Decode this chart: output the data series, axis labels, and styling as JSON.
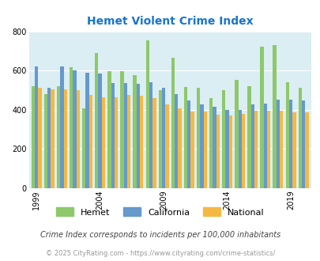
{
  "title": "Hemet Violent Crime Index",
  "title_color": "#1874CD",
  "years": [
    1999,
    2000,
    2001,
    2002,
    2003,
    2004,
    2005,
    2006,
    2007,
    2008,
    2009,
    2010,
    2011,
    2012,
    2013,
    2014,
    2015,
    2016,
    2017,
    2018,
    2019,
    2020
  ],
  "hemet": [
    520,
    480,
    520,
    615,
    405,
    690,
    595,
    595,
    575,
    755,
    500,
    665,
    515,
    510,
    460,
    500,
    550,
    520,
    720,
    730,
    540,
    510
  ],
  "california": [
    620,
    510,
    620,
    600,
    590,
    585,
    535,
    535,
    530,
    540,
    510,
    480,
    445,
    425,
    415,
    400,
    400,
    425,
    430,
    450,
    450,
    445
  ],
  "national": [
    510,
    505,
    505,
    500,
    475,
    465,
    465,
    475,
    470,
    460,
    425,
    405,
    390,
    390,
    375,
    370,
    380,
    395,
    395,
    395,
    385,
    385
  ],
  "hemet_color": "#8DC86A",
  "california_color": "#6699CC",
  "national_color": "#F5B942",
  "plot_bg": "#daeef3",
  "ylim": [
    0,
    800
  ],
  "yticks": [
    0,
    200,
    400,
    600,
    800
  ],
  "xtick_years": [
    1999,
    2004,
    2009,
    2014,
    2019
  ],
  "footnote1": "Crime Index corresponds to incidents per 100,000 inhabitants",
  "footnote2": "© 2025 CityRating.com - https://www.cityrating.com/crime-statistics/",
  "footnote1_color": "#444444",
  "footnote2_color": "#999999",
  "bar_width": 0.27
}
